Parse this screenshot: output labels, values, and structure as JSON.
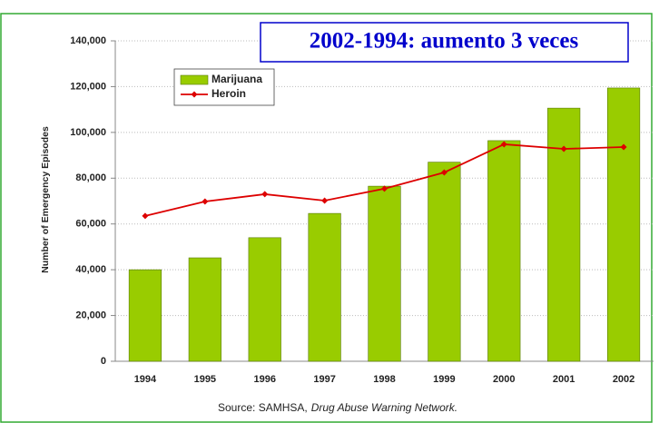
{
  "chart_data": {
    "type": "bar_line",
    "annotation": "2002-1994: aumento 3 veces",
    "y_axis_label": "Number of Emergency Episodes",
    "source_prefix": "Source:  SAMHSA,",
    "source_title": "Drug Abuse Warning Network.",
    "categories": [
      "1994",
      "1995",
      "1996",
      "1997",
      "1998",
      "1999",
      "2000",
      "2001",
      "2002"
    ],
    "series": [
      {
        "name": "Marijuana",
        "type": "bar",
        "color": "#99cc00",
        "values": [
          40000,
          45200,
          54000,
          64600,
          76500,
          87000,
          96400,
          110600,
          119400
        ]
      },
      {
        "name": "Heroin",
        "type": "line",
        "color": "#dd0000",
        "values": [
          63500,
          69800,
          73000,
          70200,
          75400,
          82500,
          94800,
          92800,
          93600
        ]
      }
    ],
    "ylim": [
      0,
      140000
    ],
    "yticks": [
      0,
      {
        "value": 20000,
        "label": "20,000"
      },
      {
        "value": 40000,
        "label": "40,000"
      },
      {
        "value": 60000,
        "label": "60,000"
      },
      {
        "value": 80000,
        "label": "80,000"
      },
      {
        "value": 100000,
        "label": "100,000"
      },
      {
        "value": 120000,
        "label": "120,000"
      },
      {
        "value": 140000,
        "label": "140,000"
      }
    ],
    "grid": true
  }
}
